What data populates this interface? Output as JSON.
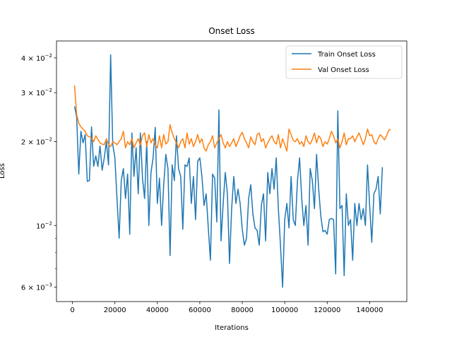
{
  "chart_data": {
    "type": "line",
    "title": "Onset Loss",
    "xlabel": "Iterations",
    "ylabel": "Loss",
    "yscale": "log",
    "xlim": [
      -7500,
      157500
    ],
    "ylim": [
      0.00533,
      0.046
    ],
    "x_ticks": [
      0,
      20000,
      40000,
      60000,
      80000,
      100000,
      120000,
      140000
    ],
    "x_tick_labels": [
      "0",
      "20000",
      "40000",
      "60000",
      "80000",
      "100000",
      "120000",
      "140000"
    ],
    "y_major_ticks": [
      0.006,
      0.01,
      0.02,
      0.03,
      0.04
    ],
    "y_major_labels": [
      {
        "base": "6 × 10",
        "exp": "−3"
      },
      {
        "base": "10",
        "exp": "−2"
      },
      {
        "base": "2 × 10",
        "exp": "−2"
      },
      {
        "base": "3 × 10",
        "exp": "−2"
      },
      {
        "base": "4 × 10",
        "exp": "−2"
      }
    ],
    "y_minor_ticks": [
      0.007,
      0.008,
      0.009
    ],
    "grid": false,
    "legend_position": "top-right",
    "series": [
      {
        "name": "Train Onset Loss",
        "color": "#1f77b4",
        "values": [
          [
            1000,
            0.0268
          ],
          [
            2000,
            0.0245
          ],
          [
            3000,
            0.0153
          ],
          [
            4000,
            0.0218
          ],
          [
            5000,
            0.0198
          ],
          [
            6000,
            0.0212
          ],
          [
            7000,
            0.0144
          ],
          [
            8000,
            0.0145
          ],
          [
            9000,
            0.0226
          ],
          [
            10000,
            0.0163
          ],
          [
            11000,
            0.0178
          ],
          [
            12000,
            0.0163
          ],
          [
            13000,
            0.0193
          ],
          [
            14000,
            0.0158
          ],
          [
            15000,
            0.0175
          ],
          [
            16000,
            0.02
          ],
          [
            17000,
            0.0165
          ],
          [
            18000,
            0.041
          ],
          [
            19000,
            0.0195
          ],
          [
            20000,
            0.0175
          ],
          [
            21000,
            0.0125
          ],
          [
            22000,
            0.009
          ],
          [
            23000,
            0.0145
          ],
          [
            24000,
            0.016
          ],
          [
            25000,
            0.0125
          ],
          [
            26000,
            0.0153
          ],
          [
            27000,
            0.0093
          ],
          [
            28000,
            0.0215
          ],
          [
            29000,
            0.015
          ],
          [
            30000,
            0.019
          ],
          [
            31000,
            0.013
          ],
          [
            32000,
            0.0215
          ],
          [
            33000,
            0.0148
          ],
          [
            34000,
            0.0125
          ],
          [
            35000,
            0.02
          ],
          [
            36000,
            0.01
          ],
          [
            37000,
            0.0155
          ],
          [
            38000,
            0.0175
          ],
          [
            39000,
            0.0225
          ],
          [
            40000,
            0.012
          ],
          [
            41000,
            0.0148
          ],
          [
            42000,
            0.01
          ],
          [
            43000,
            0.014
          ],
          [
            44000,
            0.018
          ],
          [
            45000,
            0.016
          ],
          [
            46000,
            0.0078
          ],
          [
            47000,
            0.0165
          ],
          [
            48000,
            0.0145
          ],
          [
            49000,
            0.021
          ],
          [
            50000,
            0.016
          ],
          [
            51000,
            0.015
          ],
          [
            52000,
            0.0097
          ],
          [
            53000,
            0.0165
          ],
          [
            54000,
            0.0163
          ],
          [
            55000,
            0.0175
          ],
          [
            56000,
            0.012
          ],
          [
            57000,
            0.015
          ],
          [
            58000,
            0.0105
          ],
          [
            59000,
            0.017
          ],
          [
            60000,
            0.0175
          ],
          [
            61000,
            0.015
          ],
          [
            62000,
            0.0118
          ],
          [
            63000,
            0.013
          ],
          [
            64000,
            0.0098
          ],
          [
            65000,
            0.0075
          ],
          [
            66000,
            0.0153
          ],
          [
            67000,
            0.0148
          ],
          [
            68000,
            0.0103
          ],
          [
            69000,
            0.026
          ],
          [
            70000,
            0.0088
          ],
          [
            71000,
            0.012
          ],
          [
            72000,
            0.0155
          ],
          [
            73000,
            0.013
          ],
          [
            74000,
            0.0073
          ],
          [
            75000,
            0.0115
          ],
          [
            76000,
            0.015
          ],
          [
            77000,
            0.012
          ],
          [
            78000,
            0.0135
          ],
          [
            79000,
            0.012
          ],
          [
            80000,
            0.0097
          ],
          [
            81000,
            0.0085
          ],
          [
            82000,
            0.009
          ],
          [
            83000,
            0.0125
          ],
          [
            84000,
            0.014
          ],
          [
            85000,
            0.011
          ],
          [
            86000,
            0.0098
          ],
          [
            87000,
            0.0096
          ],
          [
            88000,
            0.0085
          ],
          [
            89000,
            0.0118
          ],
          [
            90000,
            0.013
          ],
          [
            91000,
            0.0088
          ],
          [
            92000,
            0.0155
          ],
          [
            93000,
            0.013
          ],
          [
            94000,
            0.016
          ],
          [
            95000,
            0.0135
          ],
          [
            96000,
            0.0175
          ],
          [
            97000,
            0.0115
          ],
          [
            98000,
            0.0085
          ],
          [
            99000,
            0.006
          ],
          [
            100000,
            0.0105
          ],
          [
            101000,
            0.012
          ],
          [
            102000,
            0.0098
          ],
          [
            103000,
            0.015
          ],
          [
            104000,
            0.0105
          ],
          [
            105000,
            0.01
          ],
          [
            106000,
            0.0145
          ],
          [
            107000,
            0.0175
          ],
          [
            108000,
            0.0125
          ],
          [
            109000,
            0.01
          ],
          [
            110000,
            0.0118
          ],
          [
            111000,
            0.0085
          ],
          [
            112000,
            0.016
          ],
          [
            113000,
            0.0145
          ],
          [
            114000,
            0.0115
          ],
          [
            115000,
            0.018
          ],
          [
            116000,
            0.0135
          ],
          [
            117000,
            0.0108
          ],
          [
            118000,
            0.0095
          ],
          [
            119000,
            0.0096
          ],
          [
            120000,
            0.0093
          ],
          [
            121000,
            0.0105
          ],
          [
            122000,
            0.0106
          ],
          [
            123000,
            0.0105
          ],
          [
            124000,
            0.0067
          ],
          [
            125000,
            0.0258
          ],
          [
            126000,
            0.0115
          ],
          [
            127000,
            0.0118
          ],
          [
            128000,
            0.0066
          ],
          [
            129000,
            0.013
          ],
          [
            130000,
            0.01
          ],
          [
            131000,
            0.0105
          ],
          [
            132000,
            0.0075
          ],
          [
            133000,
            0.012
          ],
          [
            134000,
            0.01
          ],
          [
            135000,
            0.012
          ],
          [
            136000,
            0.0105
          ],
          [
            137000,
            0.0115
          ],
          [
            138000,
            0.01
          ],
          [
            139000,
            0.0165
          ],
          [
            140000,
            0.0118
          ],
          [
            141000,
            0.0087
          ],
          [
            142000,
            0.013
          ],
          [
            143000,
            0.0135
          ],
          [
            144000,
            0.015
          ],
          [
            145000,
            0.011
          ],
          [
            146000,
            0.0162
          ]
        ]
      },
      {
        "name": "Val Onset Loss",
        "color": "#ff7f0e",
        "values": [
          [
            1000,
            0.0318
          ],
          [
            2000,
            0.025
          ],
          [
            3000,
            0.0233
          ],
          [
            4000,
            0.0226
          ],
          [
            5000,
            0.0222
          ],
          [
            6000,
            0.0218
          ],
          [
            7000,
            0.021
          ],
          [
            8000,
            0.0208
          ],
          [
            9000,
            0.0206
          ],
          [
            10000,
            0.02
          ],
          [
            11000,
            0.021
          ],
          [
            12000,
            0.0204
          ],
          [
            13000,
            0.0198
          ],
          [
            14000,
            0.0196
          ],
          [
            15000,
            0.0195
          ],
          [
            16000,
            0.0205
          ],
          [
            17000,
            0.0196
          ],
          [
            18000,
            0.0192
          ],
          [
            19000,
            0.02
          ],
          [
            20000,
            0.0198
          ],
          [
            21000,
            0.0195
          ],
          [
            22000,
            0.02
          ],
          [
            23000,
            0.0205
          ],
          [
            24000,
            0.0218
          ],
          [
            25000,
            0.019
          ],
          [
            26000,
            0.02
          ],
          [
            27000,
            0.0195
          ],
          [
            28000,
            0.0205
          ],
          [
            29000,
            0.019
          ],
          [
            30000,
            0.0198
          ],
          [
            31000,
            0.0205
          ],
          [
            32000,
            0.0194
          ],
          [
            33000,
            0.021
          ],
          [
            34000,
            0.0215
          ],
          [
            35000,
            0.0192
          ],
          [
            36000,
            0.0212
          ],
          [
            37000,
            0.0198
          ],
          [
            38000,
            0.0205
          ],
          [
            39000,
            0.0195
          ],
          [
            40000,
            0.019
          ],
          [
            41000,
            0.021
          ],
          [
            42000,
            0.019
          ],
          [
            43000,
            0.0212
          ],
          [
            44000,
            0.0196
          ],
          [
            45000,
            0.02
          ],
          [
            46000,
            0.023
          ],
          [
            47000,
            0.0215
          ],
          [
            48000,
            0.0205
          ],
          [
            49000,
            0.0198
          ],
          [
            50000,
            0.019
          ],
          [
            51000,
            0.02
          ],
          [
            52000,
            0.0205
          ],
          [
            53000,
            0.019
          ],
          [
            54000,
            0.0215
          ],
          [
            55000,
            0.0196
          ],
          [
            56000,
            0.0205
          ],
          [
            57000,
            0.0192
          ],
          [
            58000,
            0.02
          ],
          [
            59000,
            0.0212
          ],
          [
            60000,
            0.0198
          ],
          [
            61000,
            0.0205
          ],
          [
            62000,
            0.019
          ],
          [
            63000,
            0.0185
          ],
          [
            64000,
            0.0195
          ],
          [
            65000,
            0.02
          ],
          [
            66000,
            0.021
          ],
          [
            67000,
            0.019
          ],
          [
            68000,
            0.0198
          ],
          [
            69000,
            0.0205
          ],
          [
            70000,
            0.0212
          ],
          [
            71000,
            0.0198
          ],
          [
            72000,
            0.019
          ],
          [
            73000,
            0.02
          ],
          [
            74000,
            0.0192
          ],
          [
            75000,
            0.0198
          ],
          [
            76000,
            0.0205
          ],
          [
            77000,
            0.0192
          ],
          [
            78000,
            0.02
          ],
          [
            79000,
            0.021
          ],
          [
            80000,
            0.0216
          ],
          [
            81000,
            0.0205
          ],
          [
            82000,
            0.0198
          ],
          [
            83000,
            0.019
          ],
          [
            84000,
            0.0208
          ],
          [
            85000,
            0.02
          ],
          [
            86000,
            0.0195
          ],
          [
            87000,
            0.0212
          ],
          [
            88000,
            0.0215
          ],
          [
            89000,
            0.02
          ],
          [
            90000,
            0.0205
          ],
          [
            91000,
            0.019
          ],
          [
            92000,
            0.0198
          ],
          [
            93000,
            0.0205
          ],
          [
            94000,
            0.021
          ],
          [
            95000,
            0.02
          ],
          [
            96000,
            0.0196
          ],
          [
            97000,
            0.0212
          ],
          [
            98000,
            0.019
          ],
          [
            99000,
            0.0205
          ],
          [
            100000,
            0.0195
          ],
          [
            101000,
            0.0185
          ],
          [
            102000,
            0.0222
          ],
          [
            103000,
            0.0212
          ],
          [
            104000,
            0.0202
          ],
          [
            105000,
            0.02
          ],
          [
            106000,
            0.0205
          ],
          [
            107000,
            0.0196
          ],
          [
            108000,
            0.02
          ],
          [
            109000,
            0.0192
          ],
          [
            110000,
            0.021
          ],
          [
            111000,
            0.02
          ],
          [
            112000,
            0.0196
          ],
          [
            113000,
            0.0204
          ],
          [
            114000,
            0.0215
          ],
          [
            115000,
            0.0198
          ],
          [
            116000,
            0.021
          ],
          [
            117000,
            0.0205
          ],
          [
            118000,
            0.0192
          ],
          [
            119000,
            0.02
          ],
          [
            120000,
            0.0196
          ],
          [
            121000,
            0.0205
          ],
          [
            122000,
            0.0218
          ],
          [
            123000,
            0.021
          ],
          [
            124000,
            0.0198
          ],
          [
            125000,
            0.0205
          ],
          [
            126000,
            0.019
          ],
          [
            127000,
            0.02
          ],
          [
            128000,
            0.0215
          ],
          [
            129000,
            0.0195
          ],
          [
            130000,
            0.0205
          ],
          [
            131000,
            0.0205
          ],
          [
            132000,
            0.021
          ],
          [
            133000,
            0.02
          ],
          [
            134000,
            0.0208
          ],
          [
            135000,
            0.0215
          ],
          [
            136000,
            0.0205
          ],
          [
            137000,
            0.0195
          ],
          [
            138000,
            0.0205
          ],
          [
            139000,
            0.0222
          ],
          [
            140000,
            0.021
          ],
          [
            141000,
            0.0212
          ],
          [
            142000,
            0.02
          ],
          [
            143000,
            0.0196
          ],
          [
            144000,
            0.0205
          ],
          [
            145000,
            0.0212
          ],
          [
            146000,
            0.0208
          ],
          [
            147000,
            0.0203
          ],
          [
            148000,
            0.021
          ],
          [
            149000,
            0.022
          ],
          [
            150000,
            0.0221
          ]
        ]
      }
    ]
  }
}
